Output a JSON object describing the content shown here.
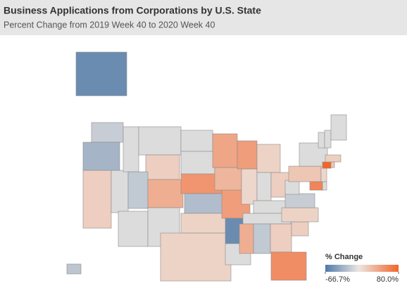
{
  "header": {
    "title": "Business Applications from Corporations by U.S. State",
    "subtitle": "Percent Change from 2019 Week 40 to 2020 Week 40"
  },
  "chart_data": {
    "type": "choropleth",
    "values": [
      -55,
      -15,
      -30,
      15,
      null,
      null,
      null,
      15,
      -18,
      null,
      35,
      null,
      null,
      null,
      50,
      -25,
      12,
      12,
      40,
      30,
      45,
      -55,
      null,
      45,
      10,
      12,
      null,
      15,
      null,
      null,
      35,
      -18,
      15,
      55,
      15,
      12,
      -15,
      null,
      20,
      null,
      60,
      null,
      10,
      80,
      15,
      20,
      null,
      null,
      null,
      -20
    ],
    "colorbar": {
      "title": "% Change",
      "lim": [
        -66.7,
        80.0
      ],
      "ticks": [
        {
          "value": -66.7,
          "label": "-66.7%"
        },
        {
          "value": 80.0,
          "label": "80.0%"
        }
      ],
      "colors": [
        "#4e79a7",
        "#ece6e2",
        "#f2652a"
      ],
      "null_color": "#dcdcdc"
    }
  }
}
